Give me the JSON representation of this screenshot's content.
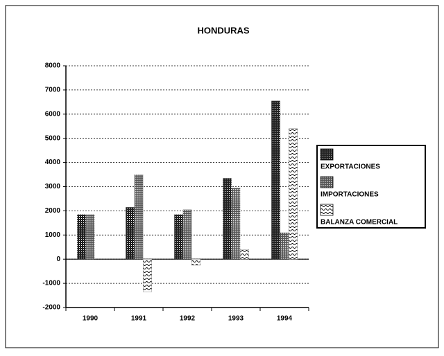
{
  "chart_data": {
    "type": "bar",
    "title": "HONDURAS",
    "categories": [
      "1990",
      "1991",
      "1992",
      "1993",
      "1994"
    ],
    "series": [
      {
        "name": "EXPORTACIONES",
        "color": "#333333",
        "values": [
          1850,
          2150,
          1850,
          3350,
          6550
        ]
      },
      {
        "name": "IMPORTACIONES",
        "color": "#8a8a8a",
        "values": [
          1850,
          3500,
          2050,
          2950,
          1100
        ]
      },
      {
        "name": "BALANZA COMERCIAL",
        "color": "#ffffff",
        "values": [
          0,
          -1350,
          -250,
          400,
          5400
        ]
      }
    ],
    "ylim": [
      -2000,
      8000
    ],
    "yticks": [
      -2000,
      -1000,
      0,
      1000,
      2000,
      3000,
      4000,
      5000,
      6000,
      7000,
      8000
    ],
    "grid": true,
    "legend": "right"
  }
}
